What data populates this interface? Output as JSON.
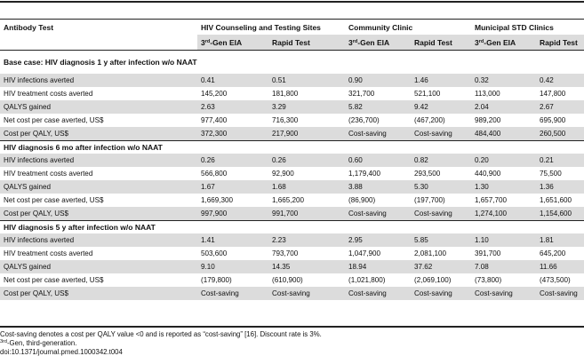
{
  "table": {
    "header": {
      "col0": "Antibody Test",
      "groups": [
        "HIV Counseling and Testing Sites",
        "Community Clinic",
        "Municipal STD Clinics"
      ],
      "sub_gen_prefix": "3",
      "sub_gen_sup": "rd",
      "sub_gen_suffix": "-Gen EIA",
      "sub_rapid": "Rapid Test"
    },
    "sections": [
      {
        "title": "Base case: HIV diagnosis 1 y after infection w/o NAAT",
        "rows": [
          {
            "label": "HIV infections averted",
            "values": [
              "0.41",
              "0.51",
              "0.90",
              "1.46",
              "0.32",
              "0.42"
            ]
          },
          {
            "label": "HIV treatment costs averted",
            "values": [
              "145,200",
              "181,800",
              "321,700",
              "521,100",
              "113,000",
              "147,800"
            ]
          },
          {
            "label": "QALYS gained",
            "values": [
              "2.63",
              "3.29",
              "5.82",
              "9.42",
              "2.04",
              "2.67"
            ]
          },
          {
            "label": "Net cost per case averted, US$",
            "values": [
              "977,400",
              "716,300",
              "(236,700)",
              "(467,200)",
              "989,200",
              "695,900"
            ]
          },
          {
            "label": "Cost per QALY, US$",
            "values": [
              "372,300",
              "217,900",
              "Cost-saving",
              "Cost-saving",
              "484,400",
              "260,500"
            ]
          }
        ]
      },
      {
        "title": "HIV diagnosis 6 mo after infection w/o NAAT",
        "rows": [
          {
            "label": "HIV infections averted",
            "values": [
              "0.26",
              "0.26",
              "0.60",
              "0.82",
              "0.20",
              "0.21"
            ]
          },
          {
            "label": "HIV treatment costs averted",
            "values": [
              "566,800",
              "92,900",
              "1,179,400",
              "293,500",
              "440,900",
              "75,500"
            ]
          },
          {
            "label": "QALYS gained",
            "values": [
              "1.67",
              "1.68",
              "3.88",
              "5.30",
              "1.30",
              "1.36"
            ]
          },
          {
            "label": "Net cost per case averted, US$",
            "values": [
              "1,669,300",
              "1,665,200",
              "(86,900)",
              "(197,700)",
              "1,657,700",
              "1,651,600"
            ]
          },
          {
            "label": "Cost per QALY, US$",
            "values": [
              "997,900",
              "991,700",
              "Cost-saving",
              "Cost-saving",
              "1,274,100",
              "1,154,600"
            ]
          }
        ]
      },
      {
        "title": "HIV diagnosis 5 y after infection w/o NAAT",
        "rows": [
          {
            "label": "HIV infections averted",
            "values": [
              "1.41",
              "2.23",
              "2.95",
              "5.85",
              "1.10",
              "1.81"
            ]
          },
          {
            "label": "HIV treatment costs averted",
            "values": [
              "503,600",
              "793,700",
              "1,047,900",
              "2,081,100",
              "391,700",
              "645,200"
            ]
          },
          {
            "label": "QALYS gained",
            "values": [
              "9.10",
              "14.35",
              "18.94",
              "37.62",
              "7.08",
              "11.66"
            ]
          },
          {
            "label": "Net cost per case averted, US$",
            "values": [
              "(179,800)",
              "(610,900)",
              "(1,021,800)",
              "(2,069,100)",
              "(73,800)",
              "(473,500)"
            ]
          },
          {
            "label": "Cost per QALY, US$",
            "values": [
              "Cost-saving",
              "Cost-saving",
              "Cost-saving",
              "Cost-saving",
              "Cost-saving",
              "Cost-saving"
            ]
          }
        ]
      }
    ]
  },
  "footnotes": {
    "line1": "Cost-saving denotes a cost per QALY value <0 and is reported as “cost-saving” [16]. Discount rate is 3%.",
    "line2_sup": "3rd",
    "line2_text": "-Gen, third-generation.",
    "doi": "doi:10.1371/journal.pmed.1000342.t004"
  }
}
